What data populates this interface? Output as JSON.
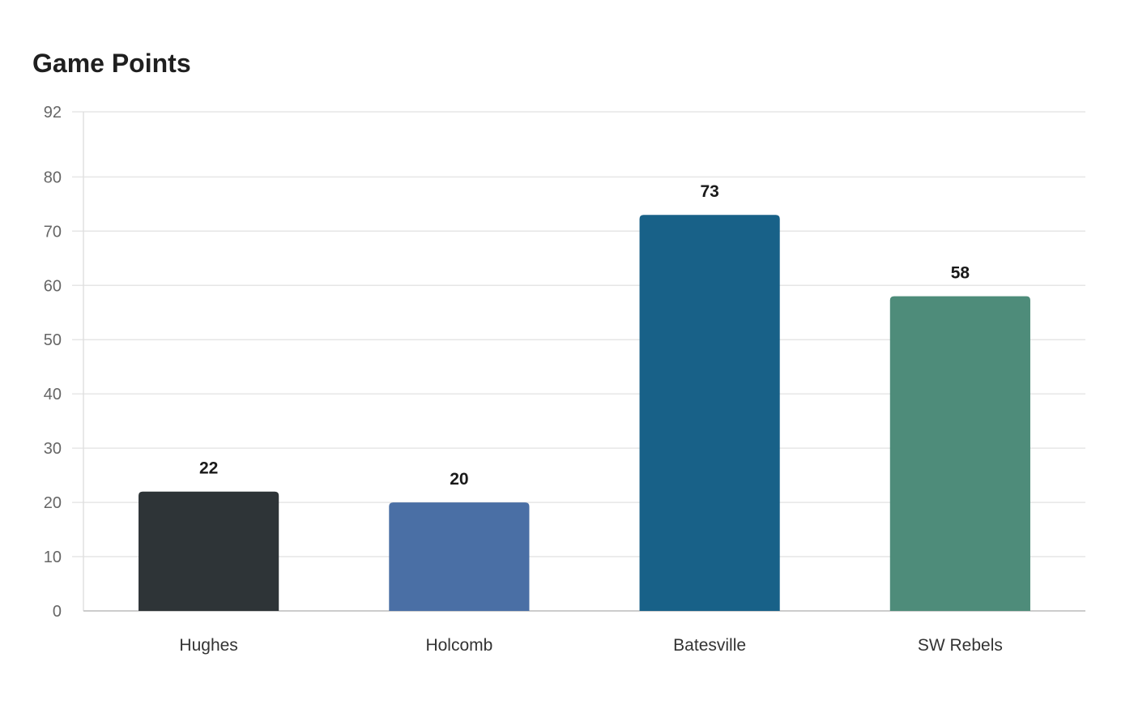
{
  "chart_data": {
    "type": "bar",
    "title": "Game Points",
    "categories": [
      "Hughes",
      "Holcomb",
      "Batesville",
      "SW Rebels"
    ],
    "values": [
      22,
      20,
      73,
      58
    ],
    "colors": [
      "#2e3437",
      "#4a6fa5",
      "#186188",
      "#4e8c7a"
    ],
    "ylim": [
      0,
      92
    ],
    "yticks": [
      0,
      10,
      20,
      30,
      40,
      50,
      60,
      70,
      80,
      92
    ],
    "xlabel": "",
    "ylabel": "",
    "grid": true,
    "data_labels": true
  }
}
